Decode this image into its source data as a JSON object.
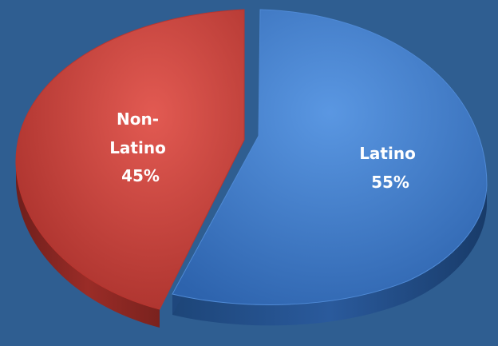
{
  "chart_data": {
    "type": "pie",
    "title": "",
    "slices": [
      {
        "name": "Latino",
        "value": 55,
        "label_lines": [
          "Latino",
          "55%"
        ],
        "color": "#3a77c8",
        "side_color": "#214c86",
        "exploded": true
      },
      {
        "name": "Non-Latino",
        "value": 45,
        "label_lines": [
          "Non-",
          "Latino",
          "45%"
        ],
        "color": "#c8413c",
        "side_color": "#8a2824",
        "exploded": true
      }
    ],
    "style": "3d-exploded",
    "background": "#2f5e91",
    "legend": "none"
  }
}
